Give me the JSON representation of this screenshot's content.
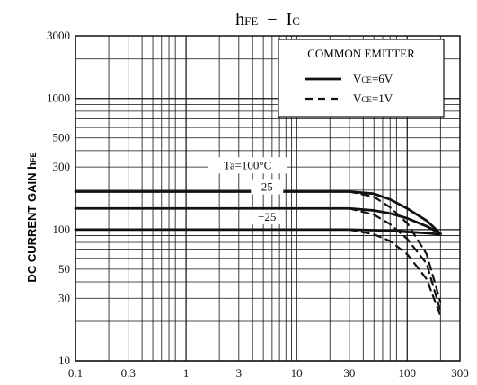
{
  "chart_data": {
    "type": "line",
    "title": "hFE − IC",
    "title_parts": {
      "lhs": "h",
      "lhs_sub": "FE",
      "dash": "−",
      "rhs": "I",
      "rhs_sub": "C"
    },
    "ylabel": "DC CURRENT GAIN  hFE",
    "ylabel_parts": {
      "text": "DC CURRENT GAIN  ",
      "sym": "h",
      "sym_sub": "FE"
    },
    "xscale": "log",
    "yscale": "log",
    "xlim": [
      0.1,
      300
    ],
    "ylim": [
      10,
      3000
    ],
    "x_ticks": [
      {
        "value": 0.1,
        "label": "0.1"
      },
      {
        "value": 0.3,
        "label": "0.3"
      },
      {
        "value": 1,
        "label": "1"
      },
      {
        "value": 3,
        "label": "3"
      },
      {
        "value": 10,
        "label": "10"
      },
      {
        "value": 30,
        "label": "30"
      },
      {
        "value": 100,
        "label": "100"
      },
      {
        "value": 300,
        "label": "300"
      }
    ],
    "y_ticks": [
      {
        "value": 10,
        "label": "10"
      },
      {
        "value": 30,
        "label": "30"
      },
      {
        "value": 50,
        "label": "50"
      },
      {
        "value": 100,
        "label": "100"
      },
      {
        "value": 300,
        "label": "300"
      },
      {
        "value": 500,
        "label": "500"
      },
      {
        "value": 1000,
        "label": "1000"
      },
      {
        "value": 3000,
        "label": "3000"
      }
    ],
    "grid": true,
    "legend": {
      "title": "COMMON EMITTER",
      "position": "top-right",
      "items": [
        {
          "style": "solid",
          "label_main": "V",
          "label_sub": "CE",
          "label_rest": "=6V"
        },
        {
          "style": "dashed",
          "label_main": "V",
          "label_sub": "CE",
          "label_rest": "=1V"
        }
      ]
    },
    "annotations": [
      {
        "text": "Ta=100°C",
        "x": 3.6,
        "y": 290
      },
      {
        "text": "25",
        "x": 5.4,
        "y": 198
      },
      {
        "text": "−25",
        "x": 5.4,
        "y": 117
      }
    ],
    "series": [
      {
        "style": "solid",
        "points": [
          [
            0.1,
            195
          ],
          [
            30,
            195
          ],
          [
            50,
            188
          ],
          [
            70,
            170
          ],
          [
            100,
            145
          ],
          [
            150,
            117
          ],
          [
            200,
            93
          ]
        ]
      },
      {
        "style": "solid",
        "points": [
          [
            0.1,
            145
          ],
          [
            30,
            145
          ],
          [
            50,
            140
          ],
          [
            70,
            133
          ],
          [
            100,
            122
          ],
          [
            150,
            106
          ],
          [
            200,
            93
          ]
        ]
      },
      {
        "style": "solid",
        "points": [
          [
            0.1,
            100
          ],
          [
            30,
            100
          ],
          [
            50,
            99
          ],
          [
            70,
            98
          ],
          [
            100,
            96
          ],
          [
            150,
            94
          ],
          [
            200,
            92
          ]
        ]
      },
      {
        "style": "dashed",
        "points": [
          [
            30,
            195
          ],
          [
            50,
            178
          ],
          [
            70,
            148
          ],
          [
            100,
            112
          ],
          [
            150,
            65
          ],
          [
            200,
            28
          ]
        ]
      },
      {
        "style": "dashed",
        "points": [
          [
            30,
            145
          ],
          [
            50,
            130
          ],
          [
            70,
            110
          ],
          [
            100,
            85
          ],
          [
            150,
            55
          ],
          [
            200,
            24
          ]
        ]
      },
      {
        "style": "dashed",
        "points": [
          [
            30,
            100
          ],
          [
            50,
            92
          ],
          [
            70,
            82
          ],
          [
            100,
            65
          ],
          [
            150,
            42
          ],
          [
            200,
            22
          ]
        ]
      }
    ]
  }
}
